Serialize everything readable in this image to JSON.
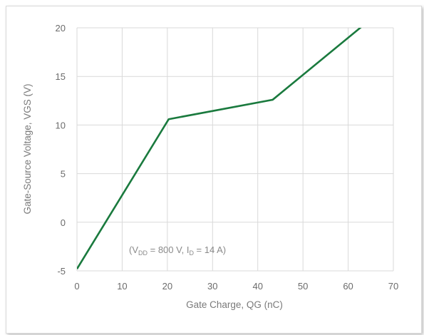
{
  "chart_data": {
    "type": "line",
    "xlabel": "Gate Charge, QG (nC)",
    "ylabel": "Gate-Source Voltage, VGS (V)",
    "xlim": [
      0,
      70
    ],
    "ylim": [
      -5,
      20
    ],
    "x_ticks": [
      "0",
      "10",
      "20",
      "30",
      "40",
      "50",
      "60",
      "70"
    ],
    "y_ticks": [
      "-5",
      "0",
      "5",
      "10",
      "15",
      "20"
    ],
    "grid": true,
    "series": [
      {
        "color": "#1a7a3e",
        "x": [
          0,
          20.3,
          43.3,
          63.2
        ],
        "y": [
          -4.8,
          10.6,
          12.6,
          20.2
        ]
      }
    ],
    "annotation": {
      "open": "(V",
      "sub1": "DD",
      "mid": " = 800 V, I",
      "sub2": "D",
      "close": " = 14 A)"
    }
  }
}
